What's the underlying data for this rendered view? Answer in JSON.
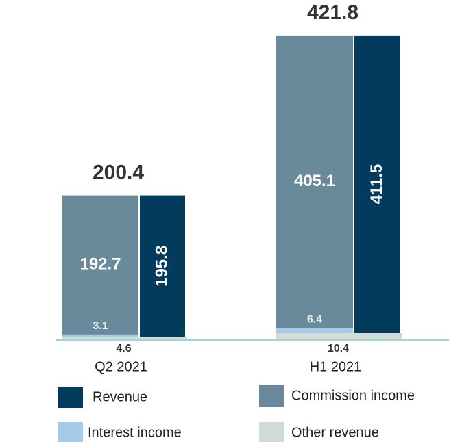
{
  "chart_data": {
    "type": "bar",
    "categories": [
      "Q2 2021",
      "H1 2021"
    ],
    "totals": [
      200.4,
      421.8
    ],
    "series": [
      {
        "name": "Revenue",
        "color": "#023b5c",
        "values": [
          195.8,
          411.5
        ]
      },
      {
        "name": "Commission income",
        "color": "#688a9b",
        "values": [
          192.7,
          405.1
        ]
      },
      {
        "name": "Interest income",
        "color": "#a6cbea",
        "values": [
          3.1,
          6.4
        ]
      },
      {
        "name": "Other revenue",
        "color": "#cfdcdb",
        "values": [
          4.6,
          10.4
        ]
      }
    ]
  }
}
